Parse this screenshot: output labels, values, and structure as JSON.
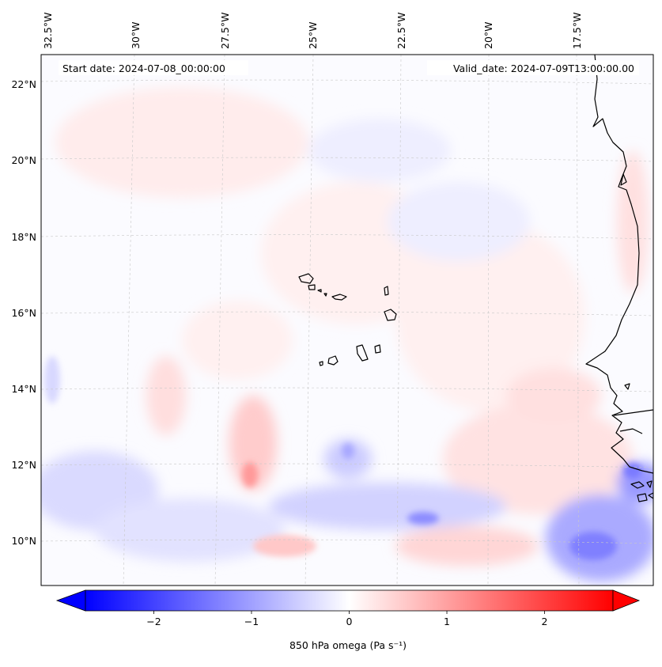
{
  "map": {
    "start_date": "Start date: 2024-07-08_00:00:00",
    "valid_date": "Valid_date: 2024-07-09T13:00:00.00",
    "lon_labels": [
      "32.5°W",
      "30°W",
      "27.5°W",
      "25°W",
      "22.5°W",
      "20°W",
      "17.5°W"
    ],
    "lat_labels": [
      "22°N",
      "20°N",
      "18°N",
      "16°N",
      "14°N",
      "12°N",
      "10°N"
    ],
    "colors": {
      "negative": "#0000ff",
      "neutral": "#ffffff",
      "positive": "#ff0000",
      "coastline": "#000000",
      "gridline": "#c8c8c8"
    }
  },
  "colorbar": {
    "label": "850 hPa omega (Pa s⁻¹)",
    "ticks": [
      "−2",
      "−1",
      "0",
      "1",
      "2"
    ],
    "tick_values": [
      -2,
      -1,
      0,
      1,
      2
    ],
    "range": [
      -2.7,
      2.7
    ],
    "extend": "both",
    "colormap": "bwr"
  }
}
